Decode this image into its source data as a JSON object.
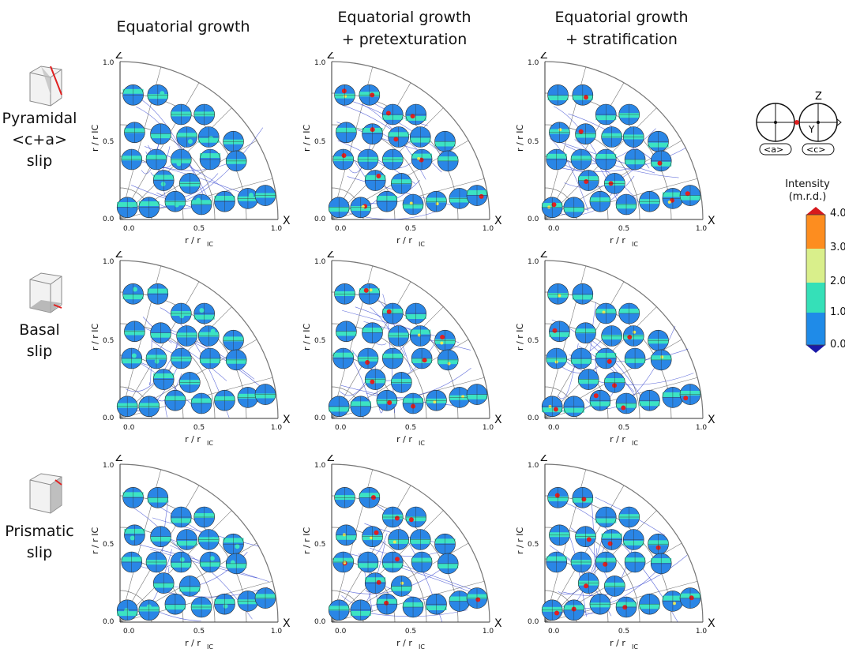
{
  "columns": [
    {
      "line1": "Equatorial growth",
      "line2": ""
    },
    {
      "line1": "Equatorial growth",
      "line2": "+ pretexturation"
    },
    {
      "line1": "Equatorial growth",
      "line2": "+ stratification"
    }
  ],
  "rows": [
    {
      "lines": [
        "Pyramidal",
        "<c+a>",
        "slip"
      ]
    },
    {
      "lines": [
        "Basal",
        "slip"
      ]
    },
    {
      "lines": [
        "Prismatic",
        "slip"
      ]
    }
  ],
  "axes": {
    "z_label": "Z",
    "x_label": "X",
    "y_axis_label": "r / r",
    "y_axis_sub": "IC",
    "x_axis_label": "r / r",
    "x_axis_sub": "IC",
    "ticks_x": [
      "0.0",
      "0.5",
      "1.0"
    ],
    "ticks_y": [
      "0.0",
      "0.5",
      "1.0"
    ]
  },
  "legend": {
    "z": "Z",
    "y": "Y",
    "x": "X",
    "a_label": "<a>",
    "c_label": "<c>"
  },
  "colorbar": {
    "title_line1": "Intensity",
    "title_line2": "(m.r.d.)",
    "ticks": [
      "4.0",
      "3.0",
      "2.0",
      "1.0",
      "0.0"
    ],
    "colors": {
      "max": "#d7191c",
      "band_3_4": "#fd8d1f",
      "band_2_3": "#d9ef8b",
      "band_1_2": "#35e0b8",
      "band_0_1": "#1f8be8",
      "min": "#1a1aa8"
    }
  },
  "colors": {
    "pole_blue": "#2a86e6",
    "pole_cyan": "#3ce3c3",
    "pole_red": "#e02020",
    "pole_yellow": "#e8e85a",
    "streamline": "#2233cc",
    "grid": "#777777"
  }
}
